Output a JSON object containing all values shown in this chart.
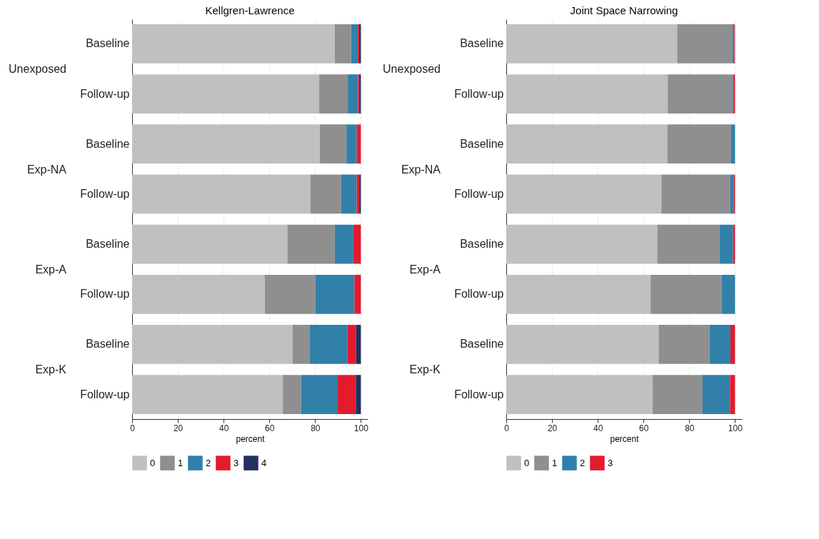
{
  "chart_data": [
    {
      "type": "bar",
      "orientation": "horizontal",
      "stacked": true,
      "title": "Kellgren-Lawrence",
      "xlabel": "percent",
      "categories": [
        "Baseline",
        "Follow-up",
        "Baseline",
        "Follow-up",
        "Baseline",
        "Follow-up",
        "Baseline",
        "Follow-up"
      ],
      "annotations": [
        "Unexposed",
        "Exp-NA",
        "Exp-A",
        "Exp-K"
      ],
      "xlim": [
        0,
        103
      ],
      "xticks": [
        0,
        20,
        40,
        60,
        80,
        100
      ],
      "grid": "x",
      "legend": "bottom",
      "series": [
        {
          "name": "0",
          "color": "#c0c0c0",
          "values": [
            88.6,
            81.8,
            82.1,
            78,
            67.9,
            58,
            70.1,
            65.9
          ]
        },
        {
          "name": "1",
          "color": "#8f8f8f",
          "values": [
            7.1,
            12.5,
            11.6,
            13.4,
            20.7,
            22.1,
            7.6,
            8
          ]
        },
        {
          "name": "2",
          "color": "#3180aa",
          "values": [
            2.9,
            4.5,
            4.5,
            6.8,
            8.1,
            17.1,
            16.4,
            16
          ]
        },
        {
          "name": "3",
          "color": "#e41a2d",
          "values": [
            0.6,
            0.5,
            1.8,
            1.1,
            3.3,
            2.8,
            3.8,
            7.9
          ]
        },
        {
          "name": "4",
          "color": "#22305d",
          "values": [
            0.8,
            0.7,
            null,
            0.7,
            null,
            null,
            2.1,
            2.2
          ]
        }
      ]
    },
    {
      "type": "bar",
      "orientation": "horizontal",
      "stacked": true,
      "title": "Joint Space Narrowing",
      "xlabel": "percent",
      "categories": [
        "Baseline",
        "Follow-up",
        "Baseline",
        "Follow-up",
        "Baseline",
        "Follow-up",
        "Baseline",
        "Follow-up"
      ],
      "annotations": [
        "Unexposed",
        "Exp-NA",
        "Exp-A",
        "Exp-K"
      ],
      "xlim": [
        0,
        103
      ],
      "xticks": [
        0,
        20,
        40,
        60,
        80,
        100
      ],
      "grid": "x",
      "legend": "bottom",
      "series": [
        {
          "name": "0",
          "color": "#c0c0c0",
          "values": [
            74.7,
            70.6,
            70.4,
            67.8,
            66,
            63.1,
            66.6,
            64
          ]
        },
        {
          "name": "1",
          "color": "#8f8f8f",
          "values": [
            24.2,
            28.4,
            27.9,
            30.2,
            27.2,
            31.1,
            22.2,
            21.8
          ]
        },
        {
          "name": "2",
          "color": "#3180aa",
          "values": [
            0.8,
            0.3,
            1.7,
            1.5,
            5.9,
            5.8,
            9.2,
            12
          ]
        },
        {
          "name": "3",
          "color": "#e41a2d",
          "values": [
            0.3,
            0.7,
            null,
            0.5,
            0.9,
            null,
            2,
            2.2
          ]
        }
      ]
    }
  ]
}
